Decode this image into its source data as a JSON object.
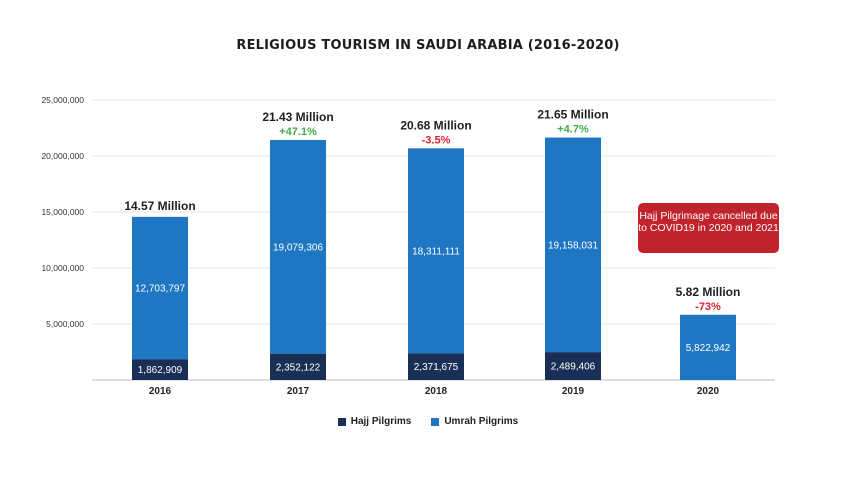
{
  "chart_data": {
    "type": "bar",
    "stacked": true,
    "title": "RELIGIOUS TOURISM IN SAUDI ARABIA (2016-2020)",
    "categories": [
      "2016",
      "2017",
      "2018",
      "2019",
      "2020"
    ],
    "series": [
      {
        "name": "Hajj Pilgrims",
        "color": "#1a2f55",
        "values": [
          1862909,
          2352122,
          2371675,
          2489406,
          0
        ],
        "labels": [
          "1,862,909",
          "2,352,122",
          "2,371,675",
          "2,489,406",
          ""
        ]
      },
      {
        "name": "Umrah Pilgrims",
        "color": "#1f76c2",
        "values": [
          12703797,
          19079306,
          18311111,
          19158031,
          5822942
        ],
        "labels": [
          "12,703,797",
          "19,079,306",
          "18,311,111",
          "19,158,031",
          "5,822,942"
        ]
      }
    ],
    "totals": [
      "14.57 Million",
      "21.43 Million",
      "20.68 Million",
      "21.65 Million",
      "5.82 Million"
    ],
    "changes": [
      "",
      "+47.1%",
      "-3.5%",
      "+4.7%",
      "-73%"
    ],
    "change_colors": {
      "positive": "#3fae49",
      "negative": "#d9262e"
    },
    "ylim": [
      0,
      25000000
    ],
    "yticks": [
      0,
      5000000,
      10000000,
      15000000,
      20000000,
      25000000
    ],
    "ytick_labels": [
      "",
      "5,000,000",
      "10,000,000",
      "15,000,000",
      "20,000,000",
      "25,000,000"
    ],
    "grid": true,
    "legend_position": "bottom-center",
    "annotation": "Hajj Pilgrimage cancelled due to COVID19 in 2020 and 2021"
  }
}
